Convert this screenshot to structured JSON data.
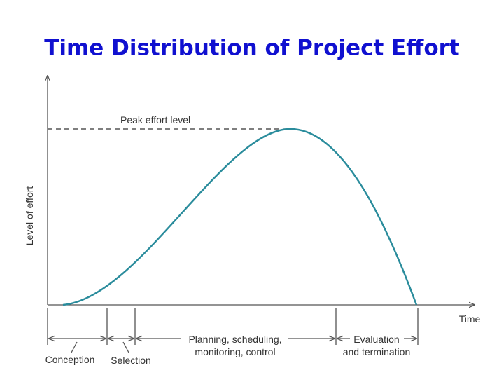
{
  "title": "Time Distribution of Project Effort",
  "axes": {
    "y_label": "Level of effort",
    "x_label": "Time"
  },
  "peak_label": "Peak effort level",
  "phases": [
    {
      "lines": [
        "Conception"
      ]
    },
    {
      "lines": [
        "Selection"
      ]
    },
    {
      "lines": [
        "Planning, scheduling,",
        "monitoring, control"
      ]
    },
    {
      "lines": [
        "Evaluation",
        "and termination"
      ]
    }
  ]
}
